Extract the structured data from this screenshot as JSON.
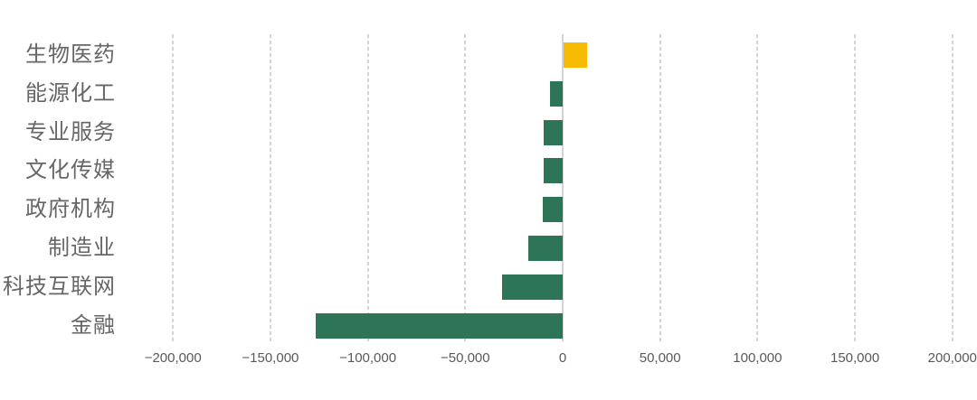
{
  "chart_data": {
    "type": "bar",
    "orientation": "horizontal",
    "title": "",
    "xlabel": "",
    "ylabel": "",
    "categories": [
      "生物医药",
      "能源化工",
      "专业服务",
      "文化传媒",
      "政府机构",
      "制造业",
      "科技互联网",
      "金融"
    ],
    "values": [
      12000,
      -6300,
      -9600,
      -9700,
      -10300,
      -17600,
      -31100,
      -126800
    ],
    "xlim": [
      -200000,
      200000
    ],
    "x_ticks": [
      -200000,
      -150000,
      -100000,
      -50000,
      0,
      50000,
      100000,
      150000,
      200000
    ],
    "x_tick_labels": [
      "−200,000",
      "−150,000",
      "−100,000",
      "−50,000",
      "0",
      "50,000",
      "100,000",
      "150,000",
      "200,000"
    ],
    "grid": "vertical-dashed",
    "legend": "none",
    "colors": {
      "positive": "#F7BB03",
      "negative": "#2E7457"
    }
  },
  "style": {
    "background": "#FFFFFF",
    "grid_color": "#D4D4D4",
    "zero_line_color": "#D4D4D4",
    "category_label_color": "#666666",
    "tick_label_color": "#595959"
  }
}
